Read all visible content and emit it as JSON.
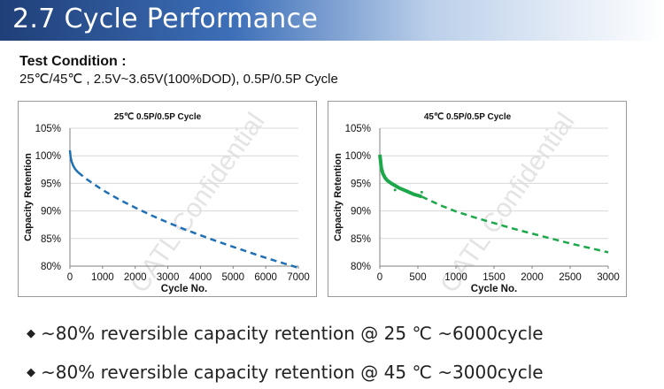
{
  "slide": {
    "title": "2.7 Cycle Performance",
    "test_condition_label": "Test Condition :",
    "test_condition_text": "25℃/45℃ , 2.5V~3.65V(100%DOD), 0.5P/0.5P Cycle",
    "watermark": "CATL Confidential",
    "bullets": [
      "~80% reversible capacity retention @ 25 ℃ ~6000cycle",
      "~80% reversible capacity retention @ 45 ℃ ~3000cycle"
    ]
  },
  "chart_data": [
    {
      "type": "line",
      "title": "25℃ 0.5P/0.5P Cycle",
      "xlabel": "Cycle No.",
      "ylabel": "Capacity Retention",
      "xlim": [
        0,
        7000
      ],
      "ylim": [
        80,
        105
      ],
      "xticks": [
        0,
        1000,
        2000,
        3000,
        4000,
        5000,
        6000,
        7000
      ],
      "yticks": [
        80,
        85,
        90,
        95,
        100,
        105
      ],
      "yticklabels": [
        "80%",
        "85%",
        "90%",
        "95%",
        "100%",
        "105%"
      ],
      "grid": true,
      "color": "#1f6fb5",
      "series": [
        {
          "measured": {
            "x": [
              0,
              20,
              50,
              100,
              150,
              200,
              250
            ],
            "y": [
              101,
              99.8,
              99.0,
              98.2,
              97.7,
              97.3,
              97.0
            ]
          },
          "fitted_dashed": {
            "x": [
              250,
              500,
              1000,
              1500,
              2000,
              2500,
              3000,
              3500,
              4000,
              4500,
              5000,
              5500,
              6000,
              6500,
              7000
            ],
            "y": [
              97.0,
              95.8,
              93.8,
              92.1,
              90.6,
              89.2,
              87.9,
              86.7,
              85.6,
              84.5,
              83.5,
              82.5,
              81.5,
              80.6,
              79.7
            ]
          }
        }
      ]
    },
    {
      "type": "line",
      "title": "45℃ 0.5P/0.5P Cycle",
      "xlabel": "Cycle No.",
      "ylabel": "Capacity Retention",
      "xlim": [
        0,
        3000
      ],
      "ylim": [
        80,
        105
      ],
      "xticks": [
        0,
        500,
        1000,
        1500,
        2000,
        2500,
        3000
      ],
      "yticks": [
        80,
        85,
        90,
        95,
        100,
        105
      ],
      "yticklabels": [
        "80%",
        "85%",
        "90%",
        "95%",
        "100%",
        "105%"
      ],
      "grid": true,
      "color": "#1ca84a",
      "series": [
        {
          "measured": {
            "x": [
              0,
              10,
              20,
              40,
              70,
              100,
              150,
              200,
              250,
              300,
              350,
              400,
              450,
              500,
              550
            ],
            "y": [
              100.2,
              99.0,
              97.8,
              96.8,
              96.0,
              95.5,
              95.0,
              94.6,
              94.2,
              93.9,
              93.6,
              93.3,
              93.0,
              92.8,
              92.6
            ]
          },
          "outliers": {
            "x": [
              200,
              550
            ],
            "y": [
              93.8,
              93.4
            ]
          },
          "fitted_dashed": {
            "x": [
              550,
              800,
              1000,
              1250,
              1500,
              1750,
              2000,
              2250,
              2500,
              2750,
              3000
            ],
            "y": [
              92.6,
              91.0,
              89.9,
              88.8,
              87.8,
              86.8,
              85.9,
              85.0,
              84.1,
              83.3,
              82.5
            ]
          }
        }
      ]
    }
  ]
}
